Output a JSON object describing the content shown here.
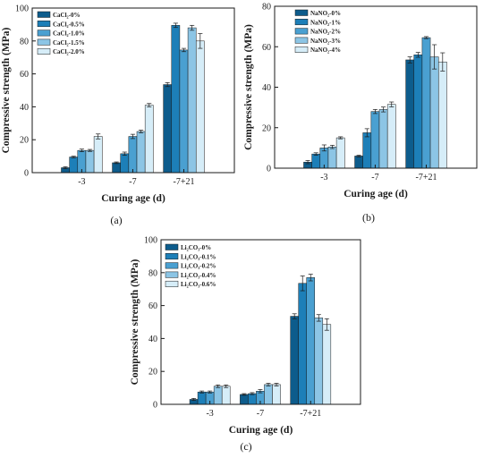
{
  "chart_data": [
    {
      "panel_label": "(a)",
      "type": "bar",
      "categories": [
        "-3",
        "-7",
        "-7+21"
      ],
      "xlabel": "Curing age (d)",
      "ylabel": "Compressive strength (MPa)",
      "ylim": [
        0,
        100
      ],
      "yticks": [
        "0",
        "20",
        "40",
        "60",
        "80",
        "100"
      ],
      "legend_position": "top-left",
      "grid": false,
      "series": [
        {
          "name": "CaCl₂-0%",
          "values": [
            3.0,
            6.0,
            53.5
          ],
          "errors": [
            0.6,
            0.5,
            1.2
          ],
          "color": "#0d5c8c"
        },
        {
          "name": "CaCl₂-0.5%",
          "values": [
            9.5,
            11.5,
            89.5
          ],
          "errors": [
            0.5,
            1.0,
            1.3
          ],
          "color": "#1d7fb8"
        },
        {
          "name": "CaCl₂-1.0%",
          "values": [
            13.5,
            22.0,
            74.5
          ],
          "errors": [
            0.8,
            1.3,
            1.0
          ],
          "color": "#4aa0d1"
        },
        {
          "name": "CaCl₂-1.5%",
          "values": [
            13.5,
            25.0,
            88.0
          ],
          "errors": [
            0.6,
            0.8,
            1.5
          ],
          "color": "#8cc5e5"
        },
        {
          "name": "CaCl₂-2.0%",
          "values": [
            22.0,
            41.0,
            80.0
          ],
          "errors": [
            1.5,
            1.0,
            4.5
          ],
          "color": "#d6edf8"
        }
      ]
    },
    {
      "panel_label": "(b)",
      "type": "bar",
      "categories": [
        "-3",
        "-7",
        "-7+21"
      ],
      "xlabel": "Curing age (d)",
      "ylabel": "Compressive strength (MPa)",
      "ylim": [
        0,
        80
      ],
      "yticks": [
        "0",
        "20",
        "40",
        "60",
        "80"
      ],
      "legend_position": "top-left",
      "grid": false,
      "series": [
        {
          "name": "NaNO₂-0%",
          "values": [
            3.0,
            6.0,
            53.5
          ],
          "errors": [
            0.8,
            0.4,
            1.5
          ],
          "color": "#0d5c8c"
        },
        {
          "name": "NaNO₂-1%",
          "values": [
            7.0,
            17.5,
            56.0
          ],
          "errors": [
            0.6,
            2.0,
            1.2
          ],
          "color": "#1d7fb8"
        },
        {
          "name": "NaNO₂-2%",
          "values": [
            10.0,
            28.0,
            64.5
          ],
          "errors": [
            1.5,
            1.0,
            0.5
          ],
          "color": "#4aa0d1"
        },
        {
          "name": "NaNO₂-3%",
          "values": [
            10.5,
            29.0,
            55.0
          ],
          "errors": [
            0.8,
            1.2,
            6.0
          ],
          "color": "#8cc5e5"
        },
        {
          "name": "NaNO₂-4%",
          "values": [
            15.0,
            31.5,
            52.5
          ],
          "errors": [
            0.5,
            1.2,
            4.5
          ],
          "color": "#d6edf8"
        }
      ]
    },
    {
      "panel_label": "(c)",
      "type": "bar",
      "categories": [
        "-3",
        "-7",
        "-7+21"
      ],
      "xlabel": "Curing age (d)",
      "ylabel": "Compressive strength (MPa)",
      "ylim": [
        0,
        100
      ],
      "yticks": [
        "0",
        "20",
        "40",
        "60",
        "80",
        "100"
      ],
      "legend_position": "top-left",
      "grid": false,
      "series": [
        {
          "name": "Li₂CO₃-0%",
          "values": [
            3.0,
            6.0,
            53.5
          ],
          "errors": [
            0.6,
            0.5,
            1.5
          ],
          "color": "#0d5c8c"
        },
        {
          "name": "Li₂CO₃-0.1%",
          "values": [
            7.5,
            6.5,
            73.5
          ],
          "errors": [
            0.6,
            0.6,
            4.5
          ],
          "color": "#1d7fb8"
        },
        {
          "name": "Li₂CO₃-0.2%",
          "values": [
            7.5,
            8.0,
            77.0
          ],
          "errors": [
            0.6,
            1.0,
            2.0
          ],
          "color": "#4aa0d1"
        },
        {
          "name": "Li₂CO₃-0.4%",
          "values": [
            11.0,
            12.0,
            52.5
          ],
          "errors": [
            0.8,
            0.8,
            2.0
          ],
          "color": "#8cc5e5"
        },
        {
          "name": "Li₂CO₃-0.6%",
          "values": [
            11.0,
            12.0,
            48.5
          ],
          "errors": [
            0.8,
            0.8,
            3.5
          ],
          "color": "#d6edf8"
        }
      ]
    }
  ]
}
